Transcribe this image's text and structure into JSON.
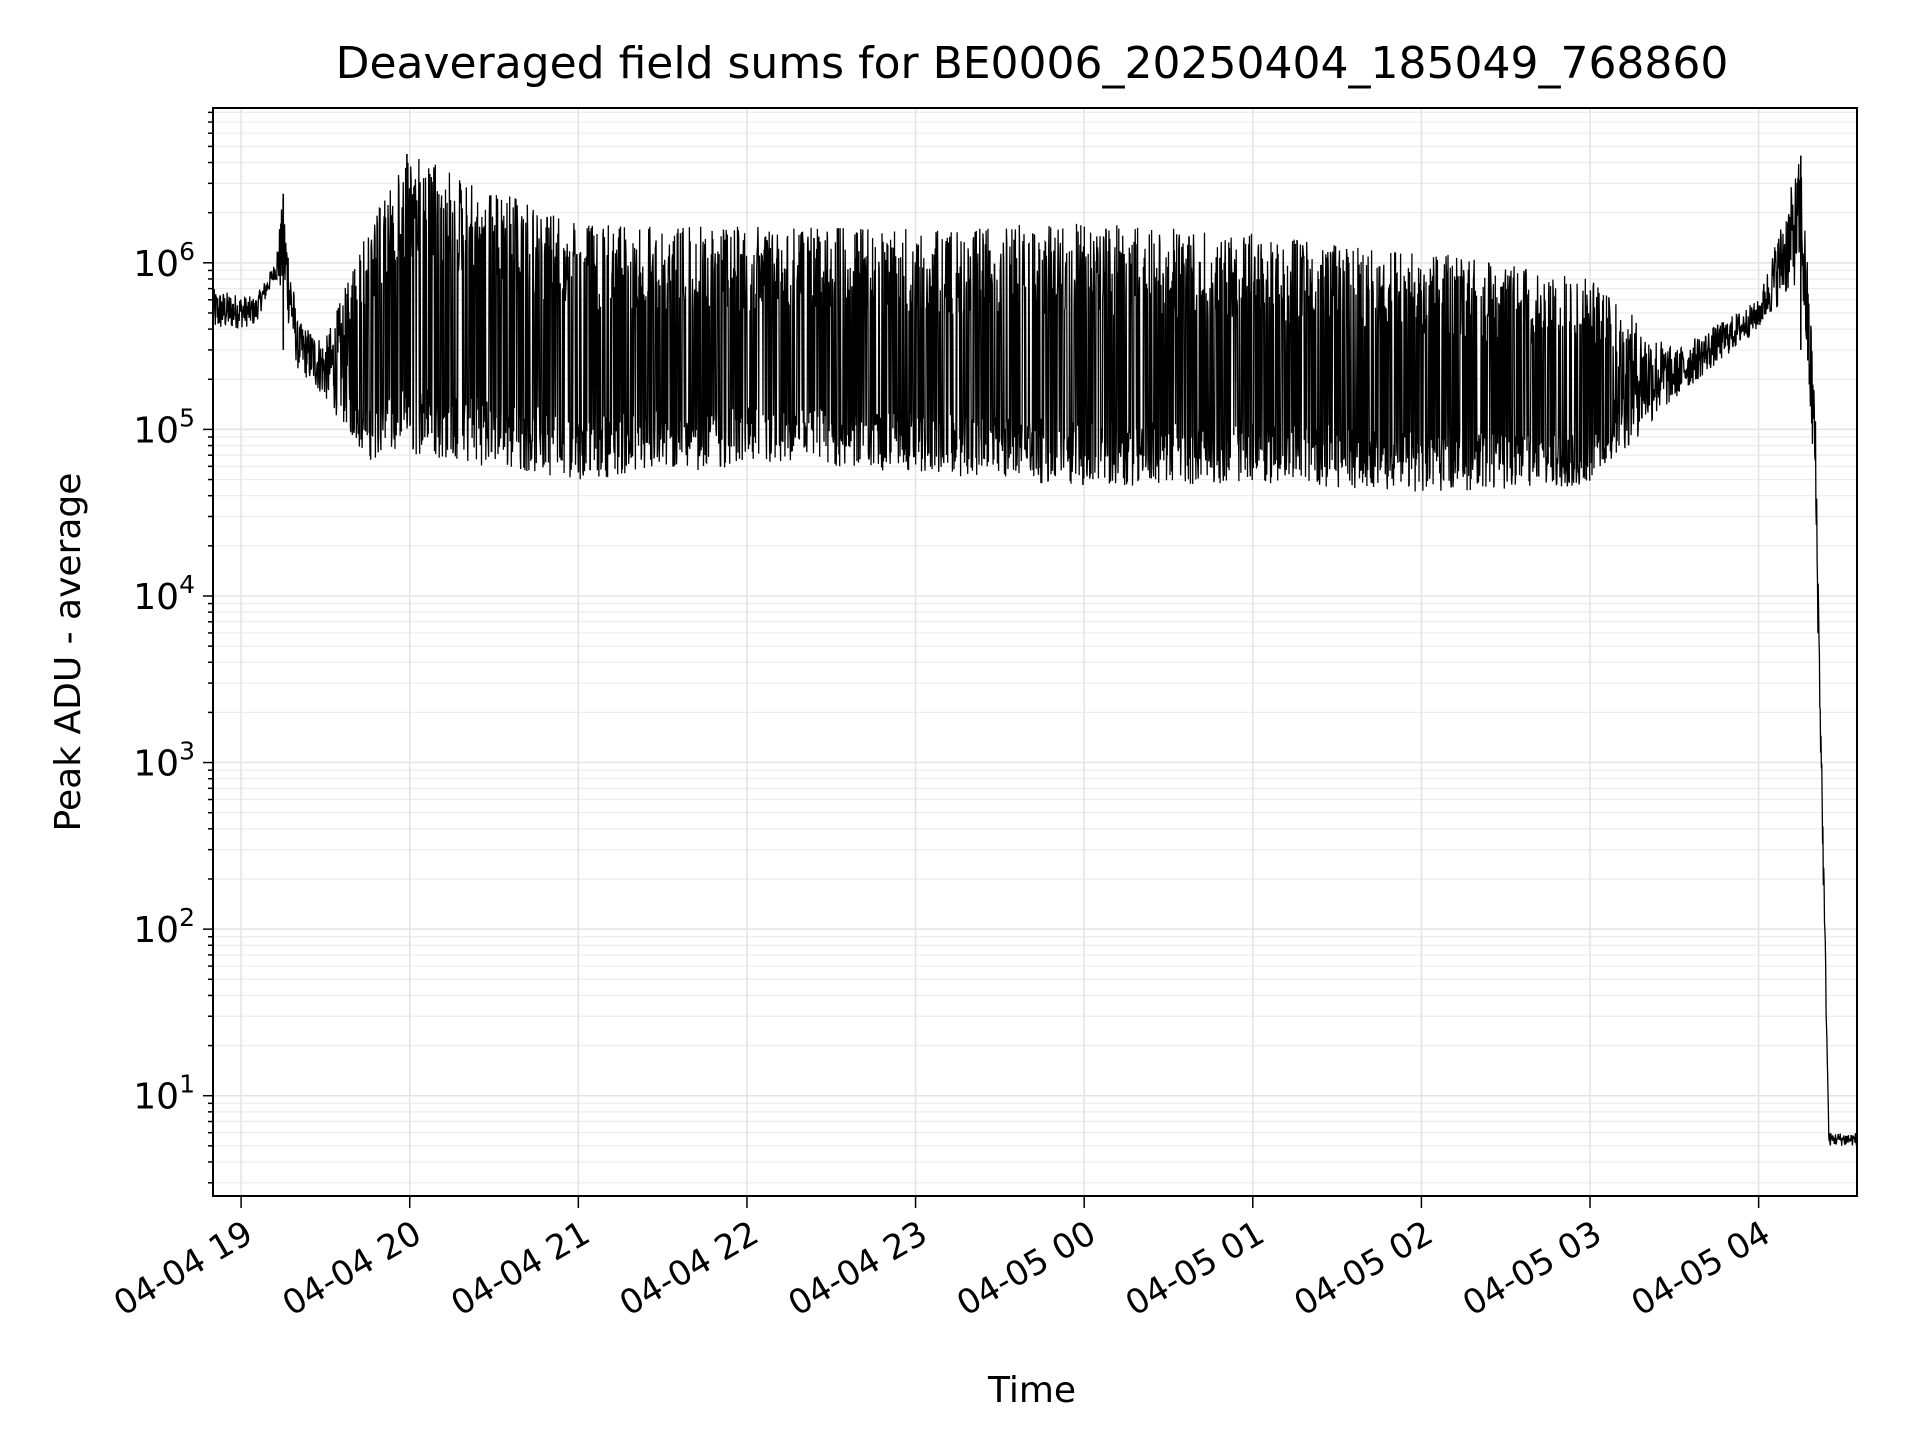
{
  "chart_data": {
    "type": "line",
    "title": "Deaveraged field sums for BE0006_20250404_185049_768860",
    "xlabel": "Time",
    "ylabel": "Peak ADU - average",
    "yscale": "log",
    "ylim": [
      2.5,
      8500000
    ],
    "xlim": [
      "2025-04-04 18:50",
      "2025-04-05 04:35"
    ],
    "grid": true,
    "line_color": "#000000",
    "xticks": [
      "04-04 19",
      "04-04 20",
      "04-04 21",
      "04-04 22",
      "04-04 23",
      "04-05 00",
      "04-05 01",
      "04-05 02",
      "04-05 03",
      "04-05 04"
    ],
    "yticks": [
      {
        "base": "10",
        "exp": "1"
      },
      {
        "base": "10",
        "exp": "2"
      },
      {
        "base": "10",
        "exp": "3"
      },
      {
        "base": "10",
        "exp": "4"
      },
      {
        "base": "10",
        "exp": "5"
      },
      {
        "base": "10",
        "exp": "6"
      }
    ],
    "series": [
      {
        "name": "",
        "summary": [
          {
            "t": "2025-04-04 18:50",
            "low": 380000,
            "high": 700000
          },
          {
            "t": "2025-04-04 19:05",
            "low": 420000,
            "high": 620000
          },
          {
            "t": "2025-04-04 19:12",
            "low": 800000,
            "high": 1000000
          },
          {
            "t": "2025-04-04 19:15",
            "low": 600000,
            "high": 2600000
          },
          {
            "t": "2025-04-04 19:20",
            "low": 230000,
            "high": 450000
          },
          {
            "t": "2025-04-04 19:30",
            "low": 150000,
            "high": 350000
          },
          {
            "t": "2025-04-04 19:45",
            "low": 65000,
            "high": 1600000
          },
          {
            "t": "2025-04-04 20:00",
            "low": 70000,
            "high": 4500000
          },
          {
            "t": "2025-04-04 21:00",
            "low": 50000,
            "high": 1700000
          },
          {
            "t": "2025-04-04 22:00",
            "low": 60000,
            "high": 1650000
          },
          {
            "t": "2025-04-04 23:00",
            "low": 55000,
            "high": 1600000
          },
          {
            "t": "2025-04-05 00:00",
            "low": 45000,
            "high": 1750000
          },
          {
            "t": "2025-04-05 01:00",
            "low": 48000,
            "high": 1500000
          },
          {
            "t": "2025-04-05 02:00",
            "low": 42000,
            "high": 1200000
          },
          {
            "t": "2025-04-05 03:00",
            "low": 45000,
            "high": 800000
          },
          {
            "t": "2025-04-05 03:30",
            "low": 150000,
            "high": 300000
          },
          {
            "t": "2025-04-05 04:00",
            "low": 400000,
            "high": 600000
          },
          {
            "t": "2025-04-05 04:15",
            "low": 800000,
            "high": 4500000
          },
          {
            "t": "2025-04-05 04:20",
            "low": 40000,
            "high": 200000
          },
          {
            "t": "2025-04-05 04:25",
            "low": 5,
            "high": 6
          },
          {
            "t": "2025-04-05 04:35",
            "low": 5,
            "high": 6
          }
        ]
      }
    ]
  }
}
